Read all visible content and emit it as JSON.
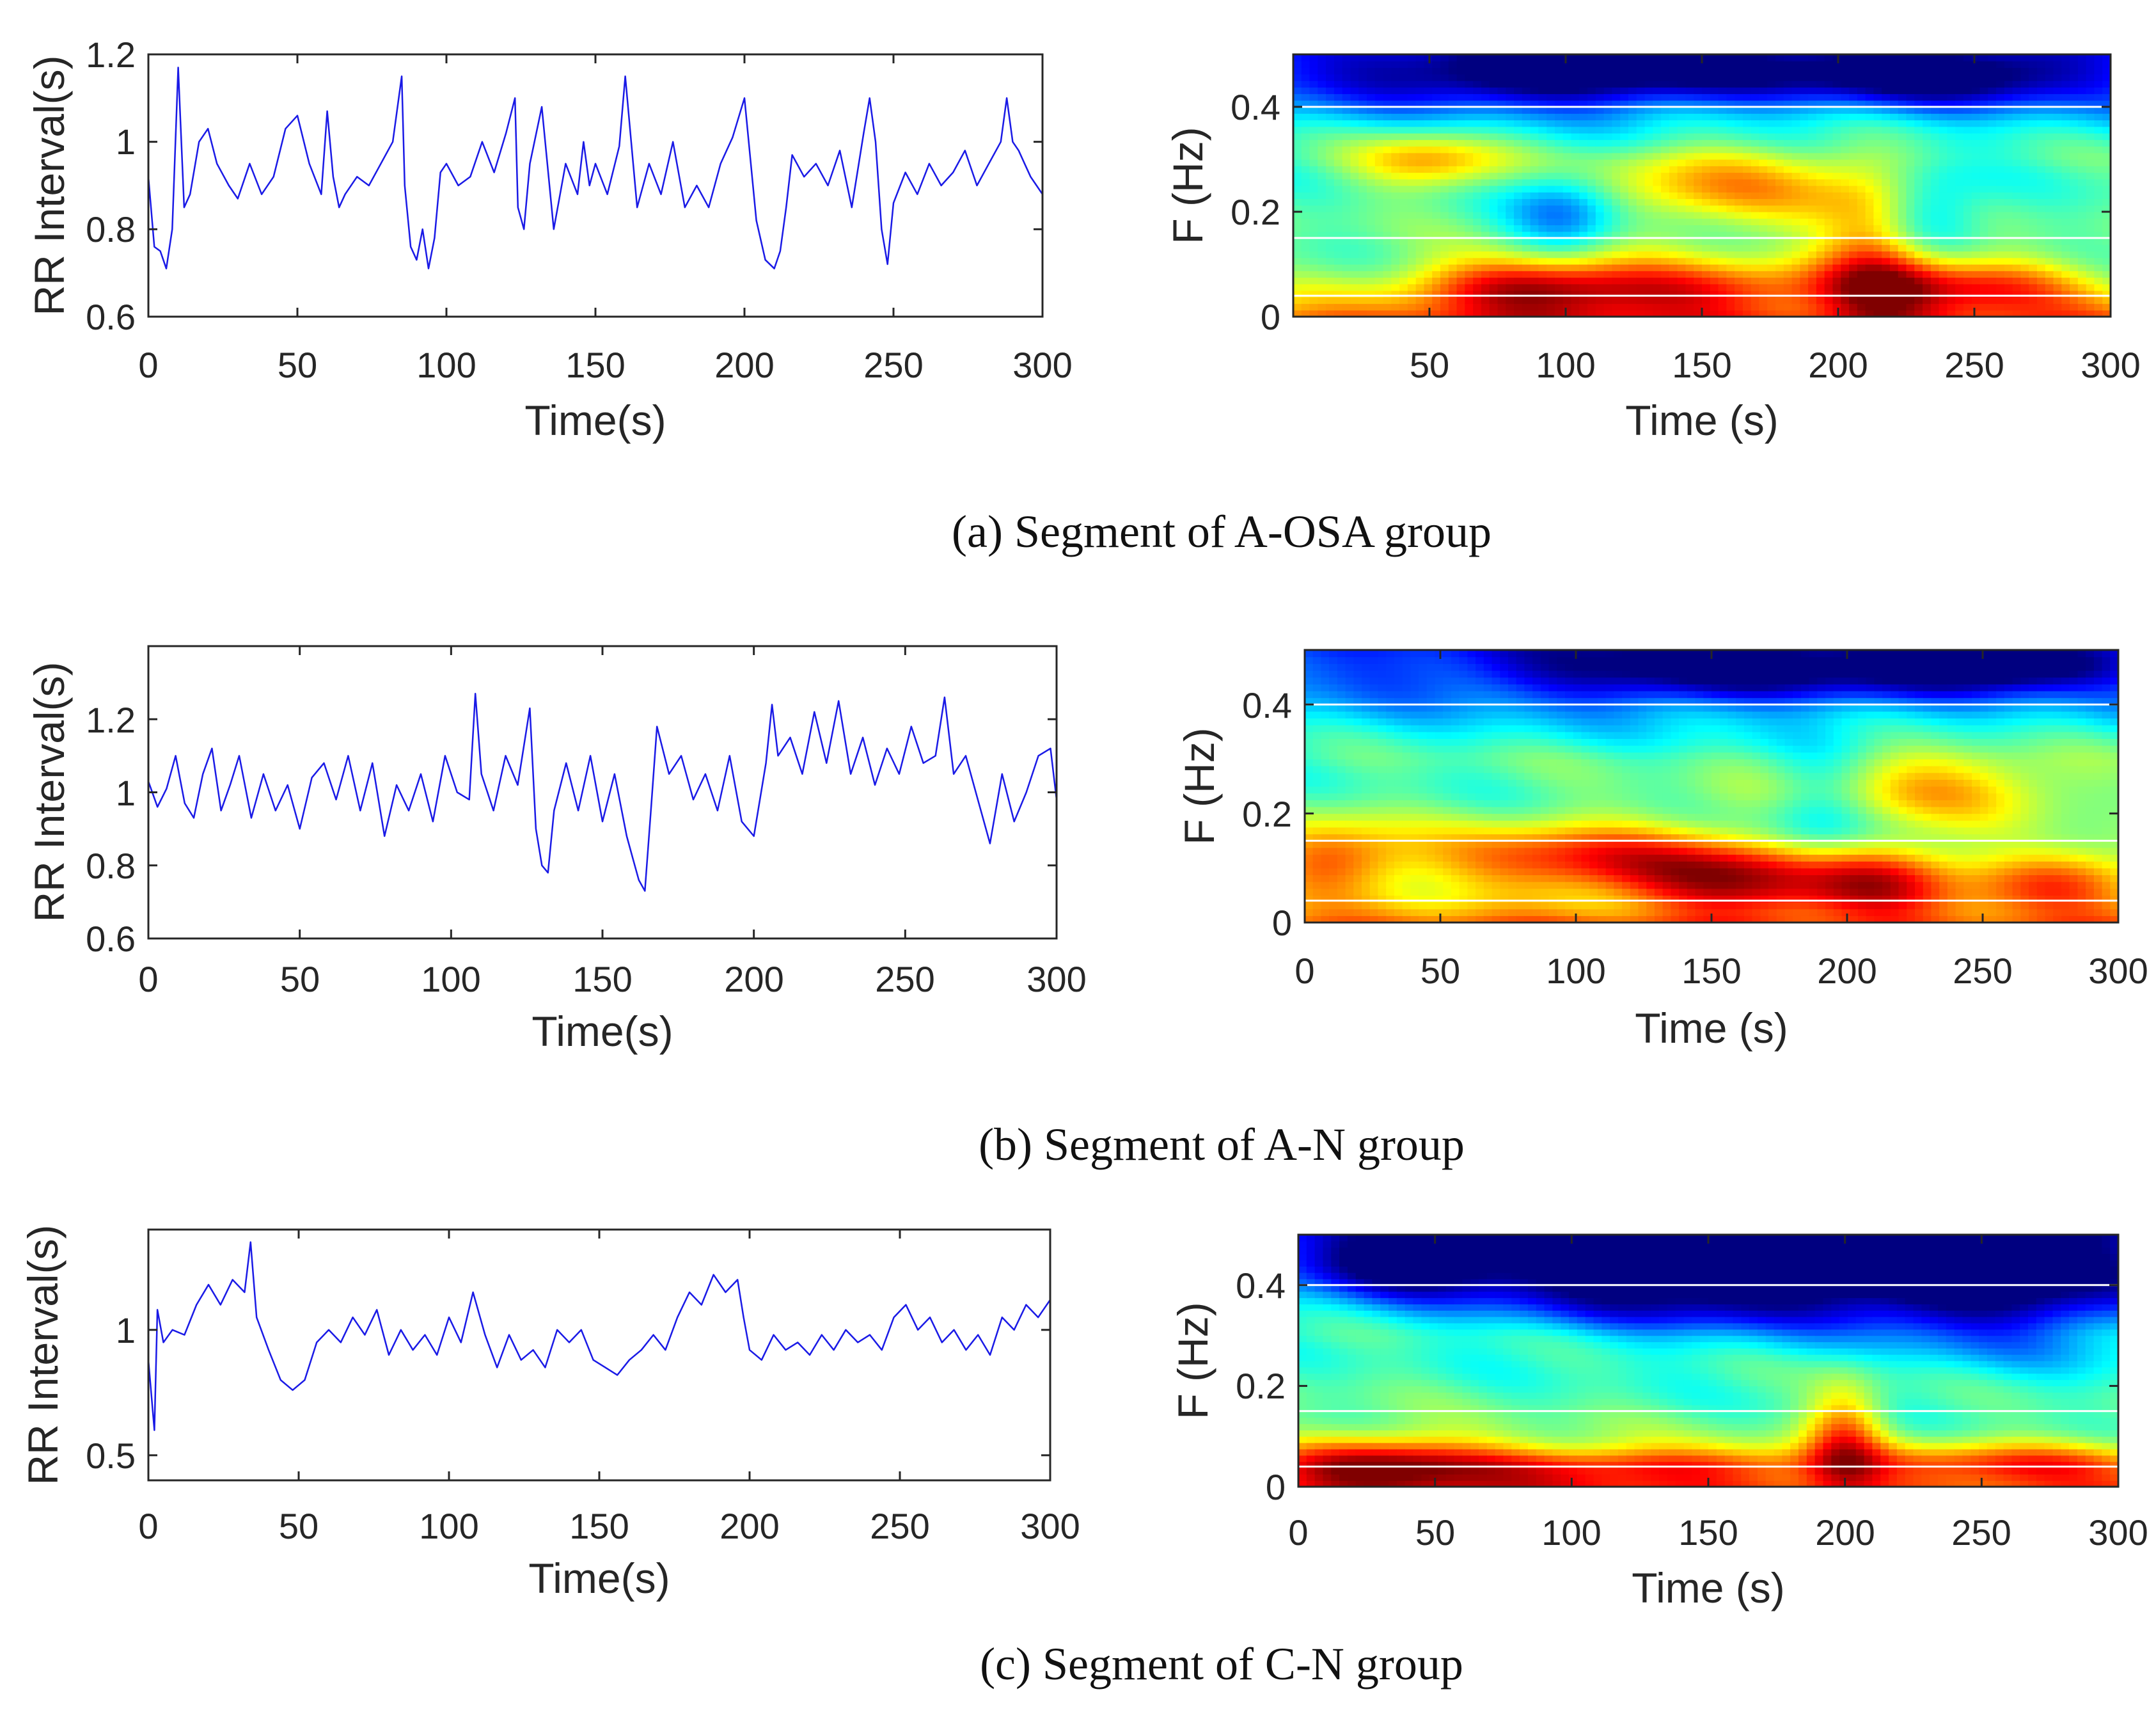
{
  "figure": {
    "captions": [
      "(a) Segment of A-OSA group",
      "(b) Segment of A-N group",
      "(c) Segment of C-N group"
    ]
  },
  "chart_data": [
    {
      "id": "a_rr",
      "type": "line",
      "title": "",
      "xlabel": "Time(s)",
      "ylabel": "RR Interval(s)",
      "xlim": [
        0,
        300
      ],
      "ylim": [
        0.6,
        1.2
      ],
      "xticks": [
        0,
        50,
        100,
        150,
        200,
        250,
        300
      ],
      "xtick_labels": [
        "0",
        "50",
        "100",
        "150",
        "200",
        "250",
        "300"
      ],
      "yticks": [
        0.6,
        0.8,
        1.0,
        1.2
      ],
      "ytick_labels": [
        "0.6",
        "0.8",
        "1",
        "1.2"
      ],
      "line_color": "#1a1ae6",
      "series": [
        {
          "name": "RR interval",
          "x": [
            0,
            2,
            4,
            6,
            8,
            10,
            12,
            14,
            17,
            20,
            23,
            27,
            30,
            34,
            38,
            42,
            46,
            50,
            54,
            58,
            60,
            62,
            64,
            66,
            70,
            74,
            78,
            82,
            85,
            86,
            88,
            90,
            92,
            94,
            96,
            98,
            100,
            104,
            108,
            112,
            116,
            120,
            123,
            124,
            126,
            128,
            132,
            136,
            140,
            144,
            146,
            148,
            150,
            154,
            158,
            160,
            162,
            164,
            168,
            172,
            176,
            180,
            184,
            188,
            192,
            196,
            200,
            204,
            207,
            210,
            212,
            214,
            216,
            220,
            224,
            228,
            232,
            236,
            240,
            242,
            244,
            246,
            248,
            250,
            254,
            258,
            262,
            266,
            270,
            274,
            278,
            282,
            286,
            288,
            290,
            292,
            294,
            296,
            298,
            300
          ],
          "values": [
            0.92,
            0.76,
            0.75,
            0.71,
            0.8,
            1.17,
            0.85,
            0.88,
            1.0,
            1.03,
            0.95,
            0.9,
            0.87,
            0.95,
            0.88,
            0.92,
            1.03,
            1.06,
            0.95,
            0.88,
            1.07,
            0.92,
            0.85,
            0.88,
            0.92,
            0.9,
            0.95,
            1.0,
            1.15,
            0.9,
            0.76,
            0.73,
            0.8,
            0.71,
            0.78,
            0.93,
            0.95,
            0.9,
            0.92,
            1.0,
            0.93,
            1.02,
            1.1,
            0.85,
            0.8,
            0.95,
            1.08,
            0.8,
            0.95,
            0.88,
            1.0,
            0.9,
            0.95,
            0.88,
            0.99,
            1.15,
            1.0,
            0.85,
            0.95,
            0.88,
            1.0,
            0.85,
            0.9,
            0.85,
            0.95,
            1.01,
            1.1,
            0.82,
            0.73,
            0.71,
            0.75,
            0.85,
            0.97,
            0.92,
            0.95,
            0.9,
            0.98,
            0.85,
            1.02,
            1.1,
            1.0,
            0.8,
            0.72,
            0.86,
            0.93,
            0.88,
            0.95,
            0.9,
            0.93,
            0.98,
            0.9,
            0.95,
            1.0,
            1.1,
            1.0,
            0.98,
            0.95,
            0.92,
            0.9,
            0.88
          ]
        }
      ]
    },
    {
      "id": "a_tf",
      "type": "heatmap",
      "title": "",
      "xlabel": "Time (s)",
      "ylabel": "F (Hz)",
      "xlim": [
        0,
        300
      ],
      "ylim": [
        0,
        0.5
      ],
      "xticks": [
        50,
        100,
        150,
        200,
        250,
        300
      ],
      "xtick_labels": [
        "50",
        "100",
        "150",
        "200",
        "250",
        "300"
      ],
      "yticks": [
        0,
        0.2,
        0.4
      ],
      "ytick_labels": [
        "0",
        "0.2",
        "0.4"
      ],
      "reference_lines_hz": [
        0.04,
        0.15,
        0.4
      ],
      "colormap": "jet",
      "hot_spots": [
        {
          "t": 50,
          "f": 0.3,
          "power": 0.25,
          "st": 20,
          "sf": 0.04
        },
        {
          "t": 85,
          "f": 0.06,
          "power": 0.35,
          "st": 30,
          "sf": 0.04
        },
        {
          "t": 145,
          "f": 0.05,
          "power": 0.3,
          "st": 40,
          "sf": 0.04
        },
        {
          "t": 160,
          "f": 0.25,
          "power": 0.25,
          "st": 40,
          "sf": 0.06
        },
        {
          "t": 215,
          "f": 0.12,
          "power": 0.35,
          "st": 15,
          "sf": 0.1
        },
        {
          "t": 250,
          "f": 0.06,
          "power": 0.3,
          "st": 30,
          "sf": 0.04
        }
      ],
      "cold_spots": [
        {
          "t": 100,
          "f": 0.46,
          "power": -0.35,
          "st": 60,
          "sf": 0.04
        },
        {
          "t": 240,
          "f": 0.46,
          "power": -0.3,
          "st": 40,
          "sf": 0.04
        },
        {
          "t": 100,
          "f": 0.2,
          "power": -0.25,
          "st": 15,
          "sf": 0.06
        },
        {
          "t": 230,
          "f": 0.2,
          "power": -0.25,
          "st": 15,
          "sf": 0.06
        }
      ]
    },
    {
      "id": "b_rr",
      "type": "line",
      "title": "",
      "xlabel": "Time(s)",
      "ylabel": "RR Interval(s)",
      "xlim": [
        0,
        300
      ],
      "ylim": [
        0.6,
        1.4
      ],
      "xticks": [
        0,
        50,
        100,
        150,
        200,
        250,
        300
      ],
      "xtick_labels": [
        "0",
        "50",
        "100",
        "150",
        "200",
        "250",
        "300"
      ],
      "yticks": [
        0.6,
        0.8,
        1.0,
        1.2
      ],
      "ytick_labels": [
        "0.6",
        "0.8",
        "1",
        "1.2"
      ],
      "line_color": "#1a1ae6",
      "series": [
        {
          "name": "RR interval",
          "x": [
            0,
            3,
            6,
            9,
            12,
            15,
            18,
            21,
            24,
            27,
            30,
            34,
            38,
            42,
            46,
            50,
            54,
            58,
            62,
            66,
            70,
            74,
            78,
            82,
            86,
            90,
            94,
            98,
            102,
            106,
            108,
            110,
            114,
            118,
            122,
            126,
            128,
            130,
            132,
            134,
            138,
            142,
            146,
            150,
            154,
            158,
            160,
            162,
            164,
            166,
            168,
            172,
            176,
            180,
            184,
            188,
            192,
            196,
            200,
            204,
            206,
            208,
            212,
            216,
            220,
            224,
            228,
            232,
            236,
            240,
            244,
            248,
            252,
            256,
            260,
            263,
            266,
            270,
            274,
            278,
            282,
            286,
            290,
            294,
            298,
            300
          ],
          "values": [
            1.03,
            0.96,
            1.01,
            1.1,
            0.97,
            0.93,
            1.05,
            1.12,
            0.95,
            1.02,
            1.1,
            0.93,
            1.05,
            0.95,
            1.02,
            0.9,
            1.04,
            1.08,
            0.98,
            1.1,
            0.95,
            1.08,
            0.88,
            1.02,
            0.95,
            1.05,
            0.92,
            1.1,
            1.0,
            0.98,
            1.27,
            1.05,
            0.95,
            1.1,
            1.02,
            1.23,
            0.9,
            0.8,
            0.78,
            0.95,
            1.08,
            0.95,
            1.1,
            0.92,
            1.05,
            0.88,
            0.82,
            0.76,
            0.73,
            0.95,
            1.18,
            1.05,
            1.1,
            0.98,
            1.05,
            0.95,
            1.1,
            0.92,
            0.88,
            1.08,
            1.24,
            1.1,
            1.15,
            1.05,
            1.22,
            1.08,
            1.25,
            1.05,
            1.15,
            1.02,
            1.12,
            1.05,
            1.18,
            1.08,
            1.1,
            1.26,
            1.05,
            1.1,
            0.98,
            0.86,
            1.05,
            0.92,
            1.0,
            1.1,
            1.12,
            0.98
          ]
        }
      ]
    },
    {
      "id": "b_tf",
      "type": "heatmap",
      "title": "",
      "xlabel": "Time (s)",
      "ylabel": "F (Hz)",
      "xlim": [
        0,
        300
      ],
      "ylim": [
        0,
        0.5
      ],
      "xticks": [
        0,
        50,
        100,
        150,
        200,
        250,
        300
      ],
      "xtick_labels": [
        "0",
        "50",
        "100",
        "150",
        "200",
        "250",
        "300"
      ],
      "yticks": [
        0,
        0.2,
        0.4
      ],
      "ytick_labels": [
        "0",
        "0.2",
        "0.4"
      ],
      "reference_lines_hz": [
        0.04,
        0.15,
        0.4
      ],
      "colormap": "jet",
      "hot_spots": [
        {
          "t": 10,
          "f": 0.12,
          "power": 0.3,
          "st": 20,
          "sf": 0.05
        },
        {
          "t": 100,
          "f": 0.12,
          "power": 0.35,
          "st": 40,
          "sf": 0.05
        },
        {
          "t": 165,
          "f": 0.08,
          "power": 0.4,
          "st": 30,
          "sf": 0.05
        },
        {
          "t": 215,
          "f": 0.08,
          "power": 0.3,
          "st": 20,
          "sf": 0.05
        },
        {
          "t": 280,
          "f": 0.08,
          "power": 0.3,
          "st": 25,
          "sf": 0.04
        },
        {
          "t": 230,
          "f": 0.25,
          "power": 0.25,
          "st": 40,
          "sf": 0.05
        }
      ],
      "cold_spots": [
        {
          "t": 150,
          "f": 0.46,
          "power": -0.3,
          "st": 60,
          "sf": 0.04
        },
        {
          "t": 260,
          "f": 0.47,
          "power": -0.3,
          "st": 30,
          "sf": 0.03
        },
        {
          "t": 190,
          "f": 0.2,
          "power": -0.2,
          "st": 15,
          "sf": 0.08
        }
      ]
    },
    {
      "id": "c_rr",
      "type": "line",
      "title": "",
      "xlabel": "Time(s)",
      "ylabel": "RR Interval(s)",
      "xlim": [
        0,
        300
      ],
      "ylim": [
        0.4,
        1.4
      ],
      "xticks": [
        0,
        50,
        100,
        150,
        200,
        250,
        300
      ],
      "xtick_labels": [
        "0",
        "50",
        "100",
        "150",
        "200",
        "250",
        "300"
      ],
      "yticks": [
        0.5,
        1.0
      ],
      "ytick_labels": [
        "0.5",
        "1"
      ],
      "line_color": "#1a1ae6",
      "series": [
        {
          "name": "RR interval",
          "x": [
            0,
            2,
            3,
            5,
            8,
            12,
            16,
            20,
            24,
            28,
            32,
            34,
            36,
            40,
            44,
            48,
            52,
            56,
            60,
            64,
            68,
            72,
            76,
            80,
            84,
            88,
            92,
            96,
            100,
            104,
            108,
            112,
            116,
            120,
            124,
            128,
            132,
            136,
            140,
            144,
            148,
            152,
            156,
            160,
            164,
            168,
            172,
            176,
            180,
            184,
            188,
            192,
            196,
            198,
            200,
            204,
            208,
            212,
            216,
            220,
            224,
            228,
            232,
            236,
            240,
            244,
            248,
            252,
            256,
            260,
            264,
            268,
            272,
            276,
            280,
            284,
            288,
            292,
            296,
            300
          ],
          "values": [
            0.88,
            0.6,
            1.08,
            0.95,
            1.0,
            0.98,
            1.1,
            1.18,
            1.1,
            1.2,
            1.15,
            1.35,
            1.05,
            0.92,
            0.8,
            0.76,
            0.8,
            0.95,
            1.0,
            0.95,
            1.05,
            0.98,
            1.08,
            0.9,
            1.0,
            0.92,
            0.98,
            0.9,
            1.05,
            0.95,
            1.15,
            0.98,
            0.85,
            0.98,
            0.88,
            0.92,
            0.85,
            1.0,
            0.95,
            1.0,
            0.88,
            0.85,
            0.82,
            0.88,
            0.92,
            0.98,
            0.92,
            1.05,
            1.15,
            1.1,
            1.22,
            1.15,
            1.2,
            1.05,
            0.92,
            0.88,
            0.98,
            0.92,
            0.95,
            0.9,
            0.98,
            0.92,
            1.0,
            0.95,
            0.98,
            0.92,
            1.05,
            1.1,
            1.0,
            1.05,
            0.95,
            1.0,
            0.92,
            0.98,
            0.9,
            1.05,
            1.0,
            1.1,
            1.05,
            1.12
          ]
        }
      ]
    },
    {
      "id": "c_tf",
      "type": "heatmap",
      "title": "",
      "xlabel": "Time (s)",
      "ylabel": "F (Hz)",
      "xlim": [
        0,
        300
      ],
      "ylim": [
        0,
        0.5
      ],
      "xticks": [
        0,
        50,
        100,
        150,
        200,
        250,
        300
      ],
      "xtick_labels": [
        "0",
        "50",
        "100",
        "150",
        "200",
        "250",
        "300"
      ],
      "yticks": [
        0,
        0.2,
        0.4
      ],
      "ytick_labels": [
        "0",
        "0.2",
        "0.4"
      ],
      "reference_lines_hz": [
        0.04,
        0.15,
        0.4
      ],
      "colormap": "jet",
      "hot_spots": [
        {
          "t": 30,
          "f": 0.05,
          "power": 0.35,
          "st": 30,
          "sf": 0.04
        },
        {
          "t": 120,
          "f": 0.04,
          "power": 0.3,
          "st": 60,
          "sf": 0.03
        },
        {
          "t": 200,
          "f": 0.1,
          "power": 0.3,
          "st": 10,
          "sf": 0.08
        },
        {
          "t": 270,
          "f": 0.05,
          "power": 0.25,
          "st": 40,
          "sf": 0.03
        }
      ],
      "cold_spots": [
        {
          "t": 150,
          "f": 0.42,
          "power": -0.45,
          "st": 60,
          "sf": 0.08
        },
        {
          "t": 260,
          "f": 0.4,
          "power": -0.35,
          "st": 40,
          "sf": 0.1
        },
        {
          "t": 40,
          "f": 0.45,
          "power": -0.3,
          "st": 25,
          "sf": 0.05
        }
      ]
    }
  ]
}
